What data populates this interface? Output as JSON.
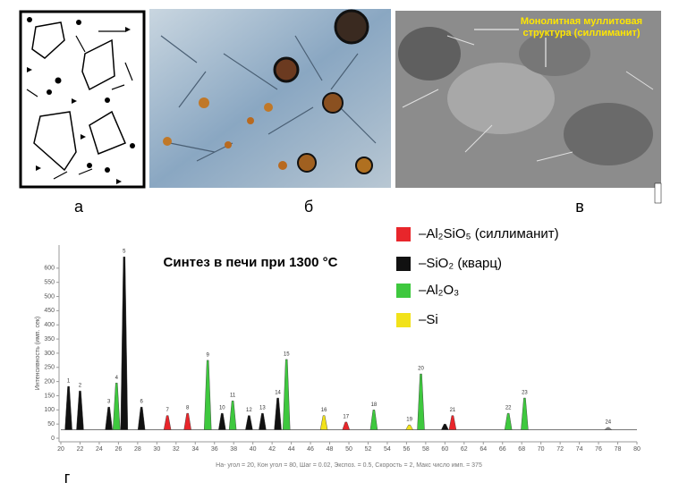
{
  "panels": [
    {
      "label": "а"
    },
    {
      "label": "б"
    },
    {
      "label": "в",
      "annotation": [
        "Монолитная муллитовая",
        "структура (силлиманит)"
      ]
    }
  ],
  "chart_data": {
    "type": "peaks",
    "panel_label": "г",
    "title": "Синтез в печи при 1300 °C",
    "y_label": "Интенсивность (имп. сек)",
    "footer": "На- угол = 20,   Кон угол = 80,   Шаг = 0.02,   Экспоз. = 0.5,   Скорость = 2,   Макс число имп. = 375",
    "xlim": [
      20,
      80
    ],
    "xticks": [
      20,
      22,
      24,
      26,
      28,
      30,
      32,
      34,
      36,
      38,
      40,
      42,
      44,
      46,
      48,
      50,
      52,
      54,
      56,
      58,
      60,
      62,
      64,
      66,
      68,
      70,
      72,
      74,
      76,
      78,
      80
    ],
    "ylim": [
      0,
      650
    ],
    "yticks": [
      0,
      50,
      100,
      150,
      200,
      250,
      300,
      350,
      400,
      450,
      500,
      550,
      600
    ],
    "background": 30,
    "series": [
      {
        "name": "–Al₂SiO₅ (силлиманит)",
        "color": "#e8262b",
        "x": [
          31.1,
          33.2,
          49.7,
          60.8
        ],
        "values": [
          80,
          88,
          57,
          80
        ],
        "labels": [
          "7",
          "8",
          "17",
          "21"
        ]
      },
      {
        "name": "–SiO₂ (кварц)",
        "color": "#111111",
        "x": [
          20.8,
          22.0,
          25.0,
          26.6,
          28.4,
          36.8,
          39.6,
          41.0,
          42.6,
          60.0
        ],
        "values": [
          183,
          167,
          110,
          640,
          110,
          88,
          80,
          88,
          142,
          50
        ],
        "labels": [
          "1",
          "2",
          "3",
          "5",
          "6",
          "10",
          "12",
          "13",
          "14",
          null
        ]
      },
      {
        "name": "–Al₂O₃",
        "color": "#3ec83e",
        "x": [
          25.8,
          35.3,
          37.9,
          43.5,
          52.6,
          57.5,
          66.6,
          68.3
        ],
        "values": [
          195,
          275,
          132,
          278,
          100,
          227,
          88,
          142
        ],
        "labels": [
          "4",
          "9",
          "11",
          "15",
          "18",
          "20",
          "22",
          "23"
        ]
      },
      {
        "name": "–Si",
        "color": "#f2e21a",
        "x": [
          47.4,
          56.3
        ],
        "values": [
          80,
          47
        ],
        "labels": [
          "16",
          "19"
        ]
      },
      {
        "color": "#888888",
        "x": [
          77.0
        ],
        "values": [
          38
        ],
        "labels": [
          "24"
        ]
      }
    ]
  }
}
